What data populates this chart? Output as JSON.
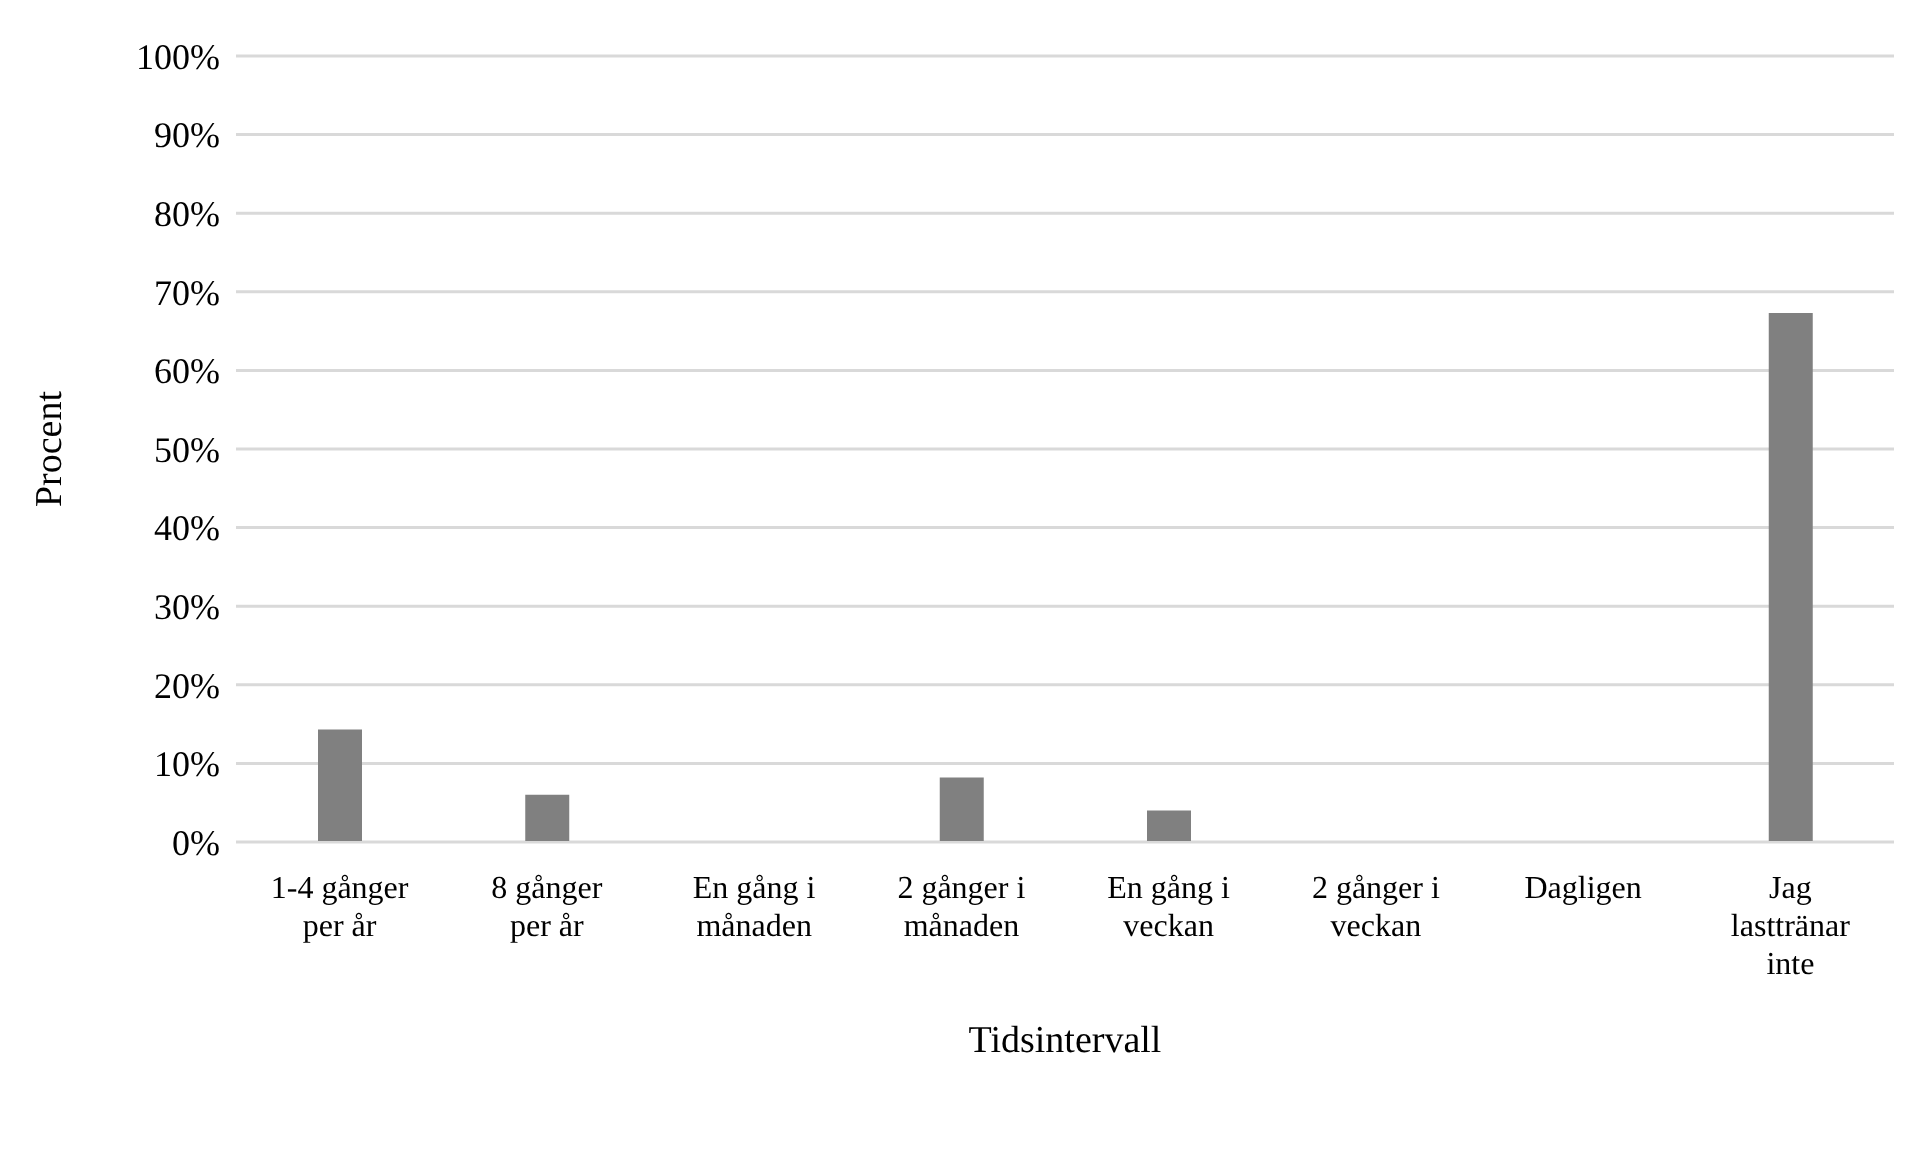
{
  "chart_data": {
    "type": "bar",
    "xlabel": "Tidsintervall",
    "ylabel": "Procent",
    "categories": [
      "1-4 gånger per år",
      "8 gånger per år",
      "En gång i månaden",
      "2 gånger i månaden",
      "En gång i veckan",
      "2 gånger i veckan",
      "Dagligen",
      "Jag lasttränar inte"
    ],
    "values": [
      14.3,
      6,
      0,
      8.2,
      4,
      0,
      0,
      67.3
    ],
    "color": "#808080",
    "ylim": [
      0,
      100
    ],
    "yticks": [
      {
        "value": 0,
        "label": "0%"
      },
      {
        "value": 10,
        "label": "10%"
      },
      {
        "value": 20,
        "label": "20%"
      },
      {
        "value": 30,
        "label": "30%"
      },
      {
        "value": 40,
        "label": "40%"
      },
      {
        "value": 50,
        "label": "50%"
      },
      {
        "value": 60,
        "label": "60%"
      },
      {
        "value": 70,
        "label": "70%"
      },
      {
        "value": 80,
        "label": "80%"
      },
      {
        "value": 90,
        "label": "90%"
      },
      {
        "value": 100,
        "label": "100%"
      }
    ],
    "grid": "y"
  }
}
